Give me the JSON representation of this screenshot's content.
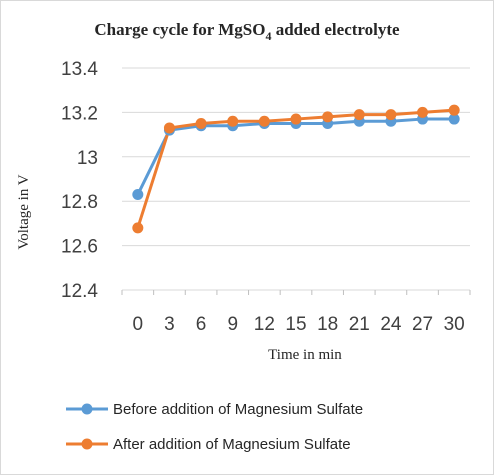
{
  "chart_data": {
    "type": "line",
    "title": {
      "prefix": "Charge cycle for MgSO",
      "subscript": "4",
      "suffix": "  added electrolyte"
    },
    "xlabel": "Time in min",
    "ylabel": "Voltage in V",
    "x": [
      0,
      3,
      6,
      9,
      12,
      15,
      18,
      21,
      24,
      27,
      30
    ],
    "x_tick_labels": [
      "0",
      "3",
      "6",
      "9",
      "12",
      "15",
      "18",
      "21",
      "24",
      "27",
      "30"
    ],
    "y_tick_labels": [
      "12.4",
      "12.6",
      "12.8",
      "13",
      "13.2",
      "13.4"
    ],
    "y_ticks": [
      12.4,
      12.6,
      12.8,
      13.0,
      13.2,
      13.4
    ],
    "ylim": [
      12.4,
      13.4
    ],
    "grid": "horizontal",
    "legend_position": "bottom",
    "series": [
      {
        "name": "Before addition of Magnesium Sulfate",
        "color": "#5b9bd5",
        "values": [
          12.83,
          13.12,
          13.14,
          13.14,
          13.15,
          13.15,
          13.15,
          13.16,
          13.16,
          13.17,
          13.17
        ]
      },
      {
        "name": "After addition of Magnesium Sulfate",
        "color": "#ed7d31",
        "values": [
          12.68,
          13.13,
          13.15,
          13.16,
          13.16,
          13.17,
          13.18,
          13.19,
          13.19,
          13.2,
          13.21
        ]
      }
    ]
  }
}
